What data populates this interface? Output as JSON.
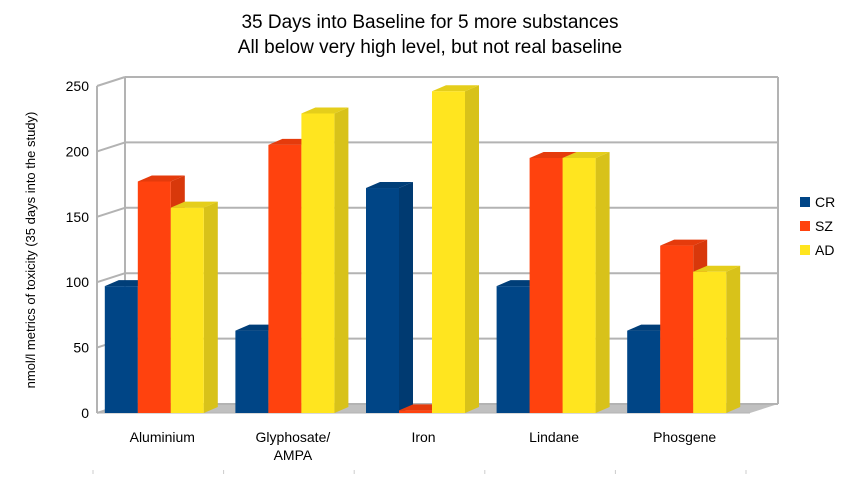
{
  "chart_data": {
    "type": "bar",
    "title": "35 Days into Baseline for 5 more substances",
    "subtitle": "All below very high level, but not real baseline",
    "xlabel": "",
    "ylabel": "nmol/l metrics of toxicity (35 days into the study)",
    "ylim": [
      0,
      250
    ],
    "yticks": [
      "0",
      "50",
      "100",
      "150",
      "200",
      "250"
    ],
    "categories": [
      "Aluminium",
      "Glyphosate/\nAMPA",
      "Iron",
      "Lindane",
      "Phosgene"
    ],
    "series": [
      {
        "name": "CR",
        "color": "#004586",
        "values": [
          97,
          63,
          172,
          97,
          63
        ]
      },
      {
        "name": "SZ",
        "color": "#ff420e",
        "values": [
          177,
          205,
          2,
          195,
          128
        ]
      },
      {
        "name": "AD",
        "color": "#ffe51f",
        "values": [
          157,
          229,
          246,
          195,
          108
        ]
      }
    ],
    "grid": true,
    "legend": "right"
  }
}
